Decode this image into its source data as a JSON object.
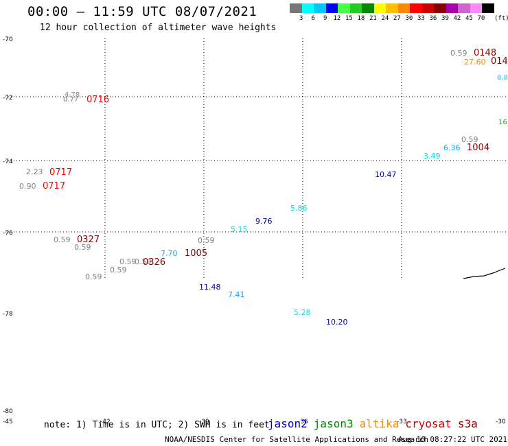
{
  "header": {
    "title": "00:00 – 11:59 UTC 08/07/2021",
    "subtitle": "12 hour collection of altimeter wave heights"
  },
  "legend": {
    "unit": "(ft)",
    "colors": [
      "#777777",
      "#00ffff",
      "#00c8ff",
      "#0000ff",
      "#44ff44",
      "#22cc22",
      "#008800",
      "#ffff00",
      "#ffc000",
      "#ff8800",
      "#ff0000",
      "#cc0000",
      "#880000",
      "#aa00aa",
      "#cc66cc",
      "#ff88ff",
      "#000000"
    ],
    "labels": [
      "3",
      "6",
      "9",
      "12",
      "15",
      "18",
      "21",
      "24",
      "27",
      "30",
      "33",
      "36",
      "39",
      "42",
      "45",
      "70"
    ]
  },
  "axes": {
    "lat_labels": [
      "-70",
      "-72",
      "-74",
      "-76",
      "-78",
      "-80"
    ],
    "lon_labels": [
      "-45",
      "-42",
      "-39",
      "-36",
      "-33",
      "-30"
    ]
  },
  "footer": {
    "note": "note: 1) Time is in UTC; 2) SWH is in feet",
    "satellites": [
      {
        "name": "jason2",
        "color": "#0000cc"
      },
      {
        "name": "jason3",
        "color": "#008800"
      },
      {
        "name": "altika",
        "color": "#ff8800"
      },
      {
        "name": "cryosat",
        "color": "#cc0000"
      },
      {
        "name": "s3a",
        "color": "#880000"
      }
    ],
    "credit": "NOAA/NESDIS Center for Satellite Applications and Research",
    "timestamp": "Aug 10 08:27:22 UTC 2021"
  },
  "wave_labels": [
    {
      "text": "0.59",
      "color": "#808080"
    },
    {
      "text": "0148",
      "color": "#880000"
    },
    {
      "text": "27.60",
      "color": "#ff8800"
    },
    {
      "text": "014",
      "color": "#880000"
    },
    {
      "text": "8.8",
      "color": "#00c8ff"
    },
    {
      "text": "4.78",
      "color": "#808080"
    },
    {
      "text": "0.77",
      "color": "#808080"
    },
    {
      "text": "0716",
      "color": "#ff0000"
    },
    {
      "text": "16.",
      "color": "#22aa22"
    },
    {
      "text": "0.59",
      "color": "#808080"
    },
    {
      "text": "6.36",
      "color": "#00aaff"
    },
    {
      "text": "1004",
      "color": "#880000"
    },
    {
      "text": "3.49",
      "color": "#00e0e0"
    },
    {
      "text": "10.47",
      "color": "#0000aa"
    },
    {
      "text": "2.23",
      "color": "#808080"
    },
    {
      "text": "0717",
      "color": "#ff0000"
    },
    {
      "text": "0.90",
      "color": "#808080"
    },
    {
      "text": "0717",
      "color": "#ff0000"
    },
    {
      "text": "5.86",
      "color": "#00e0e0"
    },
    {
      "text": "9.76",
      "color": "#0000aa"
    },
    {
      "text": "5.15",
      "color": "#00e0e0"
    },
    {
      "text": "0.59",
      "color": "#808080"
    },
    {
      "text": "0327",
      "color": "#880000"
    },
    {
      "text": "0.59",
      "color": "#808080"
    },
    {
      "text": "0.59",
      "color": "#808080"
    },
    {
      "text": "7.70",
      "color": "#00aaff"
    },
    {
      "text": "1005",
      "color": "#880000"
    },
    {
      "text": "0.59",
      "color": "#808080"
    },
    {
      "text": "0.59",
      "color": "#808080"
    },
    {
      "text": "0326",
      "color": "#880000"
    },
    {
      "text": "0.59",
      "color": "#808080"
    },
    {
      "text": "0.59",
      "color": "#808080"
    },
    {
      "text": "11.48",
      "color": "#0000aa"
    },
    {
      "text": "7.41",
      "color": "#00aaff"
    },
    {
      "text": "5.28",
      "color": "#00e0e0"
    },
    {
      "text": "10.20",
      "color": "#0000aa"
    }
  ]
}
